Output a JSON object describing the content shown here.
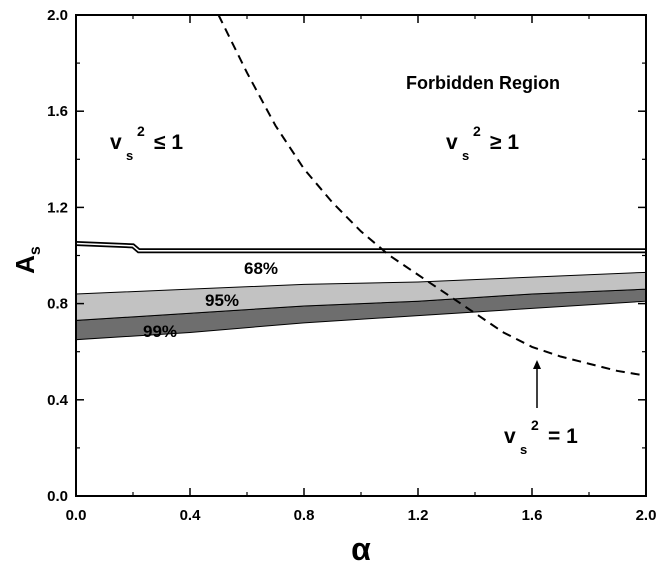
{
  "chart_data": {
    "type": "area",
    "xlabel": "α",
    "ylabel": {
      "main": "A",
      "sub": "s"
    },
    "xlim": [
      0.0,
      2.0
    ],
    "ylim": [
      0.0,
      2.0
    ],
    "xticks": [
      "0.0",
      "0.4",
      "0.8",
      "1.2",
      "1.6",
      "2.0"
    ],
    "yticks": [
      "0.0",
      "0.4",
      "0.8",
      "1.2",
      "1.6",
      "2.0"
    ],
    "grid": false,
    "series": [
      {
        "name": "99%",
        "color": "#6e6e6e",
        "upper": [
          [
            0.0,
            0.73
          ],
          [
            0.4,
            0.76
          ],
          [
            0.8,
            0.79
          ],
          [
            1.2,
            0.81
          ],
          [
            1.6,
            0.84
          ],
          [
            2.0,
            0.86
          ]
        ],
        "lower": [
          [
            0.0,
            0.65
          ],
          [
            0.4,
            0.68
          ],
          [
            0.8,
            0.72
          ],
          [
            1.2,
            0.75
          ],
          [
            1.6,
            0.78
          ],
          [
            2.0,
            0.81
          ]
        ]
      },
      {
        "name": "95%",
        "color": "#c2c2c2",
        "upper": [
          [
            0.0,
            0.84
          ],
          [
            0.4,
            0.86
          ],
          [
            0.8,
            0.88
          ],
          [
            1.2,
            0.89
          ],
          [
            1.6,
            0.91
          ],
          [
            2.0,
            0.93
          ]
        ],
        "lower": [
          [
            0.0,
            0.73
          ],
          [
            0.4,
            0.76
          ],
          [
            0.8,
            0.79
          ],
          [
            1.2,
            0.81
          ],
          [
            1.6,
            0.84
          ],
          [
            2.0,
            0.86
          ]
        ]
      },
      {
        "name": "68%",
        "color": "#000000",
        "values": [
          [
            0.0,
            1.05
          ],
          [
            0.2,
            1.04
          ],
          [
            0.22,
            1.02
          ],
          [
            2.0,
            1.02
          ]
        ]
      },
      {
        "name": "v_s^2 = 1",
        "style": "dashed",
        "color": "#000000",
        "values": [
          [
            0.5,
            2.0
          ],
          [
            0.6,
            1.76
          ],
          [
            0.7,
            1.54
          ],
          [
            0.8,
            1.36
          ],
          [
            0.9,
            1.22
          ],
          [
            1.0,
            1.1
          ],
          [
            1.1,
            1.0
          ],
          [
            1.2,
            0.92
          ],
          [
            1.3,
            0.84
          ],
          [
            1.4,
            0.76
          ],
          [
            1.5,
            0.68
          ],
          [
            1.6,
            0.62
          ],
          [
            1.7,
            0.58
          ],
          [
            1.8,
            0.55
          ],
          [
            1.9,
            0.52
          ],
          [
            2.0,
            0.5
          ]
        ]
      }
    ],
    "annotations": {
      "forbidden": "Forbidden Region",
      "vs_le_main": "v",
      "vs_le_sub": "s",
      "vs_le_sup": "2",
      "vs_le_rel": "≤ 1",
      "vs_ge_main": "v",
      "vs_ge_sub": "s",
      "vs_ge_sup": "2",
      "vs_ge_rel": "≥ 1",
      "vs_eq_main": "v",
      "vs_eq_sub": "s",
      "vs_eq_sup": "2",
      "vs_eq_rel": "= 1",
      "label_68": "68%",
      "label_95": "95%",
      "label_99": "99%"
    }
  }
}
